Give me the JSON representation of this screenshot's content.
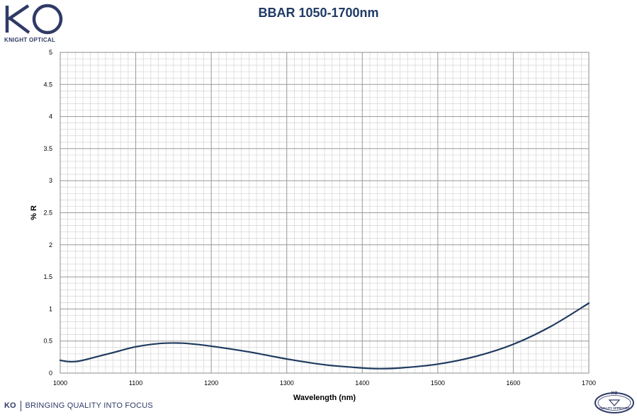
{
  "branding": {
    "logo_text": "KO",
    "company_name": "KNIGHT OPTICAL",
    "footer_logo": "KO",
    "footer_tagline": "BRINGING QUALITY INTO FOCUS",
    "badge_top": "KO",
    "badge_text": "QUALITY APPROVED",
    "brand_color": "#2f3a66"
  },
  "chart_data": {
    "type": "line",
    "title": "BBAR 1050-1700nm",
    "xlabel": "Wavelength (nm)",
    "ylabel": "% R",
    "xlim": [
      1000,
      1700
    ],
    "ylim": [
      0,
      5
    ],
    "x_ticks": [
      "1000",
      "1100",
      "1200",
      "1300",
      "1400",
      "1500",
      "1600",
      "1700"
    ],
    "y_ticks": [
      "0",
      "0.5",
      "1",
      "1.5",
      "2",
      "2.5",
      "3",
      "3.5",
      "4",
      "4.5",
      "5"
    ],
    "grid": true,
    "legend": "none",
    "line_color": "#1f3a5f",
    "series": [
      {
        "x": [
          1000,
          1010,
          1020,
          1030,
          1050,
          1070,
          1100,
          1130,
          1150,
          1170,
          1200,
          1250,
          1300,
          1350,
          1400,
          1420,
          1450,
          1500,
          1550,
          1600,
          1650,
          1700
        ],
        "values": [
          0.2,
          0.18,
          0.18,
          0.2,
          0.26,
          0.32,
          0.41,
          0.46,
          0.47,
          0.46,
          0.42,
          0.33,
          0.22,
          0.13,
          0.08,
          0.07,
          0.08,
          0.14,
          0.26,
          0.45,
          0.73,
          1.09
        ]
      }
    ]
  }
}
